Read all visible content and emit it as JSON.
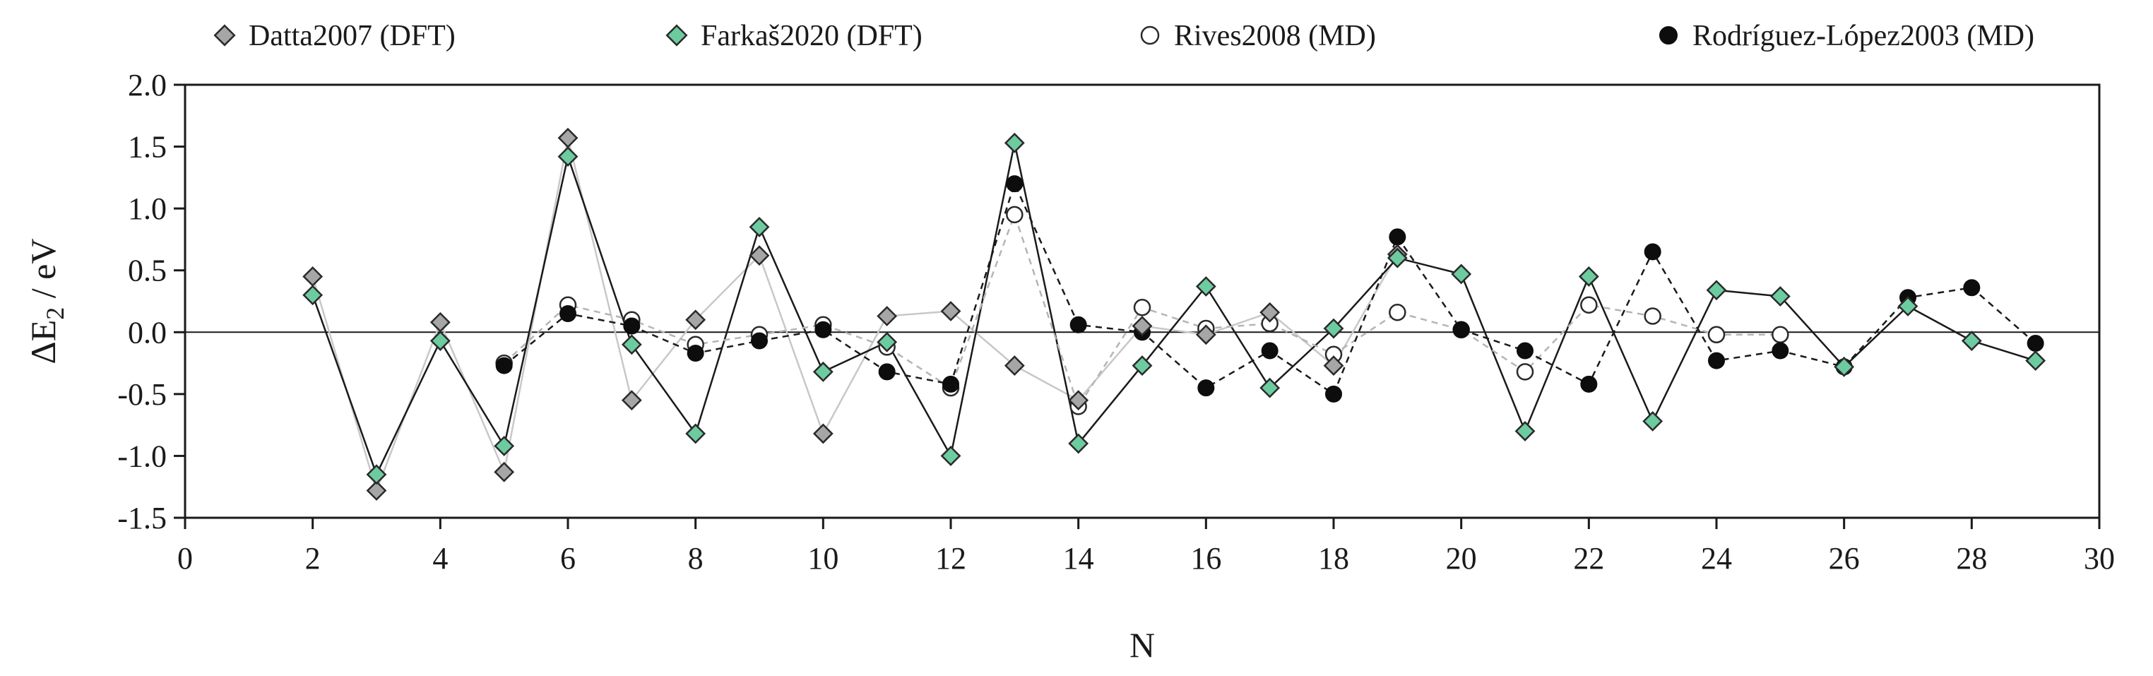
{
  "chart_data": {
    "type": "line",
    "xlabel": "N",
    "ylabel": "ΔE",
    "ylabel_sub": "2",
    "ylabel_unit": " / eV",
    "xlim": [
      0,
      30
    ],
    "ylim": [
      -1.5,
      2.0
    ],
    "xticks": [
      0,
      2,
      4,
      6,
      8,
      10,
      12,
      14,
      16,
      18,
      20,
      22,
      24,
      26,
      28,
      30
    ],
    "xtick_labels": [
      "0",
      "2",
      "4",
      "6",
      "8",
      "10",
      "12",
      "14",
      "16",
      "18",
      "20",
      "22",
      "24",
      "26",
      "28",
      "30"
    ],
    "yticks": [
      2.0,
      1.5,
      1.0,
      0.5,
      0.0,
      -0.5,
      -1.0,
      -1.5
    ],
    "ytick_labels": [
      "2.0",
      "1.5",
      "1.0",
      "0.5",
      "0.0",
      "-0.5",
      "-1.0",
      "-1.5"
    ],
    "reference_line": 0.0,
    "legend_position": "top",
    "series": [
      {
        "name": "Datta2007 (DFT)",
        "marker": "diamond",
        "color": "#a6a6a6",
        "line_color": "#c8c8c8",
        "line_style": "solid",
        "x": [
          2,
          3,
          4,
          5,
          6,
          7,
          8,
          9,
          10,
          11,
          12,
          13,
          14,
          15,
          16,
          17,
          18,
          19
        ],
        "y": [
          0.45,
          -1.28,
          0.08,
          -1.13,
          1.57,
          -0.55,
          0.1,
          0.62,
          -0.82,
          0.13,
          0.17,
          -0.27,
          -0.55,
          0.05,
          -0.02,
          0.16,
          -0.27,
          0.63
        ]
      },
      {
        "name": "Farkaš2020 (DFT)",
        "marker": "diamond",
        "color": "#6dcba0",
        "line_color": "#1a1a1a",
        "line_style": "solid",
        "x": [
          2,
          3,
          4,
          5,
          6,
          7,
          8,
          9,
          10,
          11,
          12,
          13,
          14,
          15,
          16,
          17,
          18,
          19,
          20,
          21,
          22,
          23,
          24,
          25,
          26,
          27,
          28,
          29
        ],
        "y": [
          0.3,
          -1.15,
          -0.07,
          -0.92,
          1.42,
          -0.1,
          -0.82,
          0.85,
          -0.32,
          -0.08,
          -1.0,
          1.53,
          -0.9,
          -0.27,
          0.37,
          -0.45,
          0.03,
          0.6,
          0.47,
          -0.8,
          0.45,
          -0.72,
          0.34,
          0.29,
          -0.28,
          0.21,
          -0.07,
          -0.23
        ]
      },
      {
        "name": "Rives2008 (MD)",
        "marker": "circle-open",
        "color": "#ffffff",
        "line_color": "#b5b5b5",
        "line_style": "dashed",
        "x": [
          5,
          6,
          7,
          8,
          9,
          10,
          11,
          12,
          13,
          14,
          15,
          16,
          17,
          18,
          19,
          20,
          21,
          22,
          23,
          24,
          25
        ],
        "y": [
          -0.25,
          0.22,
          0.1,
          -0.1,
          -0.02,
          0.06,
          -0.12,
          -0.45,
          0.95,
          -0.6,
          0.2,
          0.03,
          0.07,
          -0.18,
          0.16,
          0.02,
          -0.32,
          0.22,
          0.13,
          -0.02,
          -0.02
        ]
      },
      {
        "name": "Rodríguez-López2003 (MD)",
        "marker": "circle-filled",
        "color": "#0d0d0d",
        "line_color": "#1a1a1a",
        "line_style": "dashed",
        "x": [
          5,
          6,
          7,
          8,
          9,
          10,
          11,
          12,
          13,
          14,
          15,
          16,
          17,
          18,
          19,
          20,
          21,
          22,
          23,
          24,
          25,
          26,
          27,
          28,
          29
        ],
        "y": [
          -0.27,
          0.15,
          0.05,
          -0.17,
          -0.07,
          0.02,
          -0.32,
          -0.42,
          1.2,
          0.06,
          0.0,
          -0.45,
          -0.15,
          -0.5,
          0.77,
          0.02,
          -0.15,
          -0.42,
          0.65,
          -0.23,
          -0.15,
          -0.28,
          0.28,
          0.36,
          -0.09
        ]
      }
    ]
  }
}
